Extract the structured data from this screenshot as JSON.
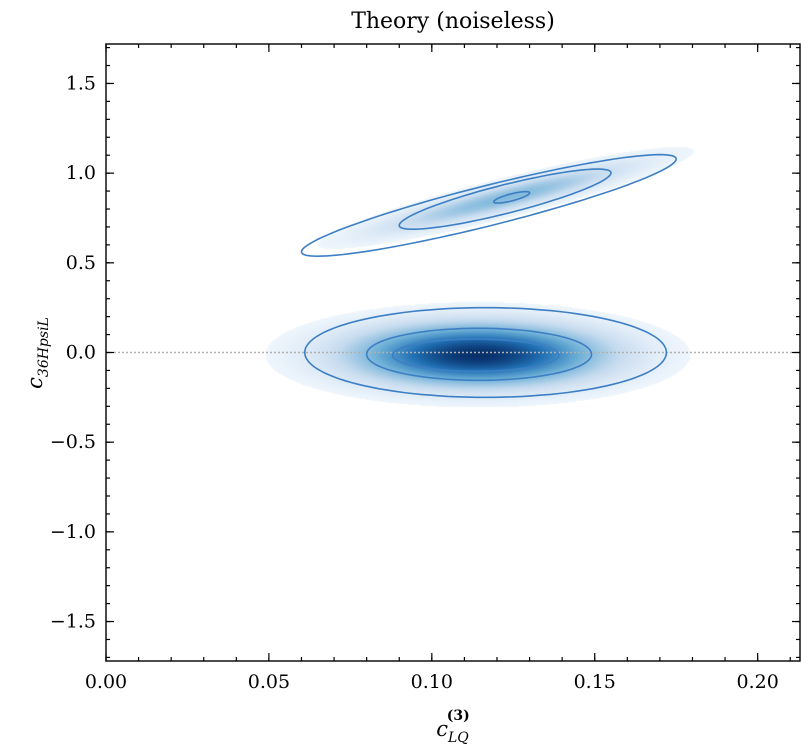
{
  "chart_data": {
    "type": "contour",
    "title": "Theory (noiseless)",
    "xlabel": {
      "base": "c",
      "sub": "LQ",
      "sup": "(3)"
    },
    "ylabel": {
      "base": "c",
      "sub": "36HpsiL"
    },
    "xlim": [
      0.0,
      0.213
    ],
    "ylim": [
      -1.72,
      1.72
    ],
    "x_ticks": [
      {
        "value": 0.0,
        "label": "0.00"
      },
      {
        "value": 0.05,
        "label": "0.05"
      },
      {
        "value": 0.1,
        "label": "0.10"
      },
      {
        "value": 0.15,
        "label": "0.15"
      },
      {
        "value": 0.2,
        "label": "0.20"
      }
    ],
    "y_ticks": [
      {
        "value": 1.5,
        "label": "1.5"
      },
      {
        "value": 1.0,
        "label": "1.0"
      },
      {
        "value": 0.5,
        "label": "0.5"
      },
      {
        "value": 0.0,
        "label": "0.0"
      },
      {
        "value": -0.5,
        "label": "−0.5"
      },
      {
        "value": -1.0,
        "label": "−1.0"
      },
      {
        "value": -1.5,
        "label": "−1.5"
      }
    ],
    "reference_line": {
      "y": 0.0,
      "style": "dotted",
      "color": "#b0b0b0"
    },
    "colormap": "Blues",
    "contour_color": "#3d7fc4",
    "modes": [
      {
        "center": [
          0.114,
          -0.01
        ],
        "peak_density": 1.0,
        "contours": [
          {
            "center": [
              0.1165,
              0.0
            ],
            "half_width": 0.0555,
            "half_height": 0.25,
            "tilt_deg": 0
          },
          {
            "center": [
              0.1145,
              -0.01
            ],
            "half_width": 0.0345,
            "half_height": 0.145,
            "tilt_deg": 0
          },
          {
            "center": [
              0.1135,
              -0.015
            ],
            "half_width": 0.0255,
            "half_height": 0.09,
            "tilt_deg": 0
          }
        ]
      },
      {
        "center": [
          0.1225,
          0.865
        ],
        "peak_density": 0.35,
        "contours": [
          {
            "center": [
              0.1175,
              0.82
            ],
            "half_width": 0.0575,
            "half_height": 0.115,
            "slope": 4.5
          },
          {
            "center": [
              0.1225,
              0.855
            ],
            "half_width": 0.0325,
            "half_height": 0.082,
            "slope": 4.5
          },
          {
            "center": [
              0.1245,
              0.865
            ],
            "half_width": 0.0055,
            "half_height": 0.02,
            "slope": 4.5
          }
        ]
      }
    ]
  }
}
